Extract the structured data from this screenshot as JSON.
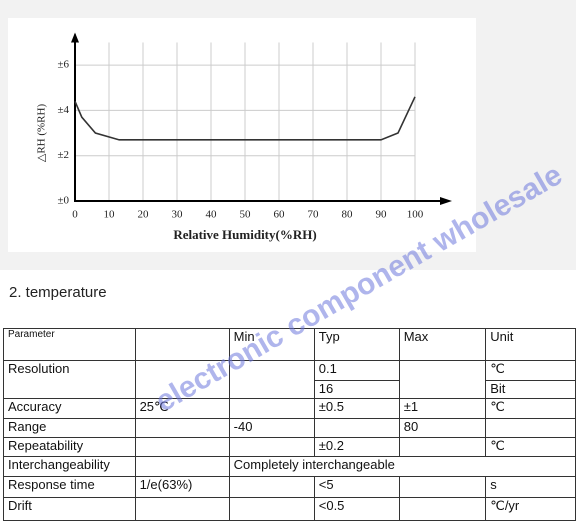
{
  "chart_data": {
    "type": "line",
    "y_label": "△RH (%RH)",
    "x_label": "Relative Humidity(%RH)",
    "x": [
      0,
      2,
      6,
      13,
      90,
      95,
      100
    ],
    "values": [
      4.4,
      3.7,
      3.0,
      2.7,
      2.7,
      3.0,
      4.6
    ],
    "color": "#333333",
    "xlim": [
      0,
      105
    ],
    "ylim": [
      0,
      7
    ],
    "xticks": [
      0,
      10,
      20,
      30,
      40,
      50,
      60,
      70,
      80,
      90,
      100
    ],
    "yticks": [
      {
        "value": 0,
        "label": "±0"
      },
      {
        "value": 2,
        "label": "±2"
      },
      {
        "value": 4,
        "label": "±4"
      },
      {
        "value": 6,
        "label": "±6"
      }
    ],
    "grid": true
  },
  "section_title": "2. temperature",
  "watermark": "electronic component wholesale",
  "table": {
    "header": [
      "Parameter",
      null,
      "Min",
      "Typ",
      "Max",
      "Unit"
    ],
    "rows": [
      [
        "Resolution",
        null,
        null,
        "0.1",
        null,
        "℃"
      ],
      [
        null,
        null,
        null,
        "16",
        null,
        "Bit"
      ],
      [
        "Accuracy",
        "25℃",
        null,
        "±0.5",
        "±1",
        "℃"
      ],
      [
        "Range",
        null,
        "-40",
        null,
        "80",
        null
      ],
      [
        "Repeatability",
        null,
        null,
        "±0.2",
        null,
        "℃"
      ],
      [
        "Interchangeability",
        null,
        "Completely interchangeable"
      ],
      [
        "Response time",
        "1/e(63%)",
        null,
        "<5",
        null,
        "s"
      ],
      [
        "Drift",
        null,
        null,
        "<0.5",
        null,
        "℃/yr"
      ]
    ]
  }
}
